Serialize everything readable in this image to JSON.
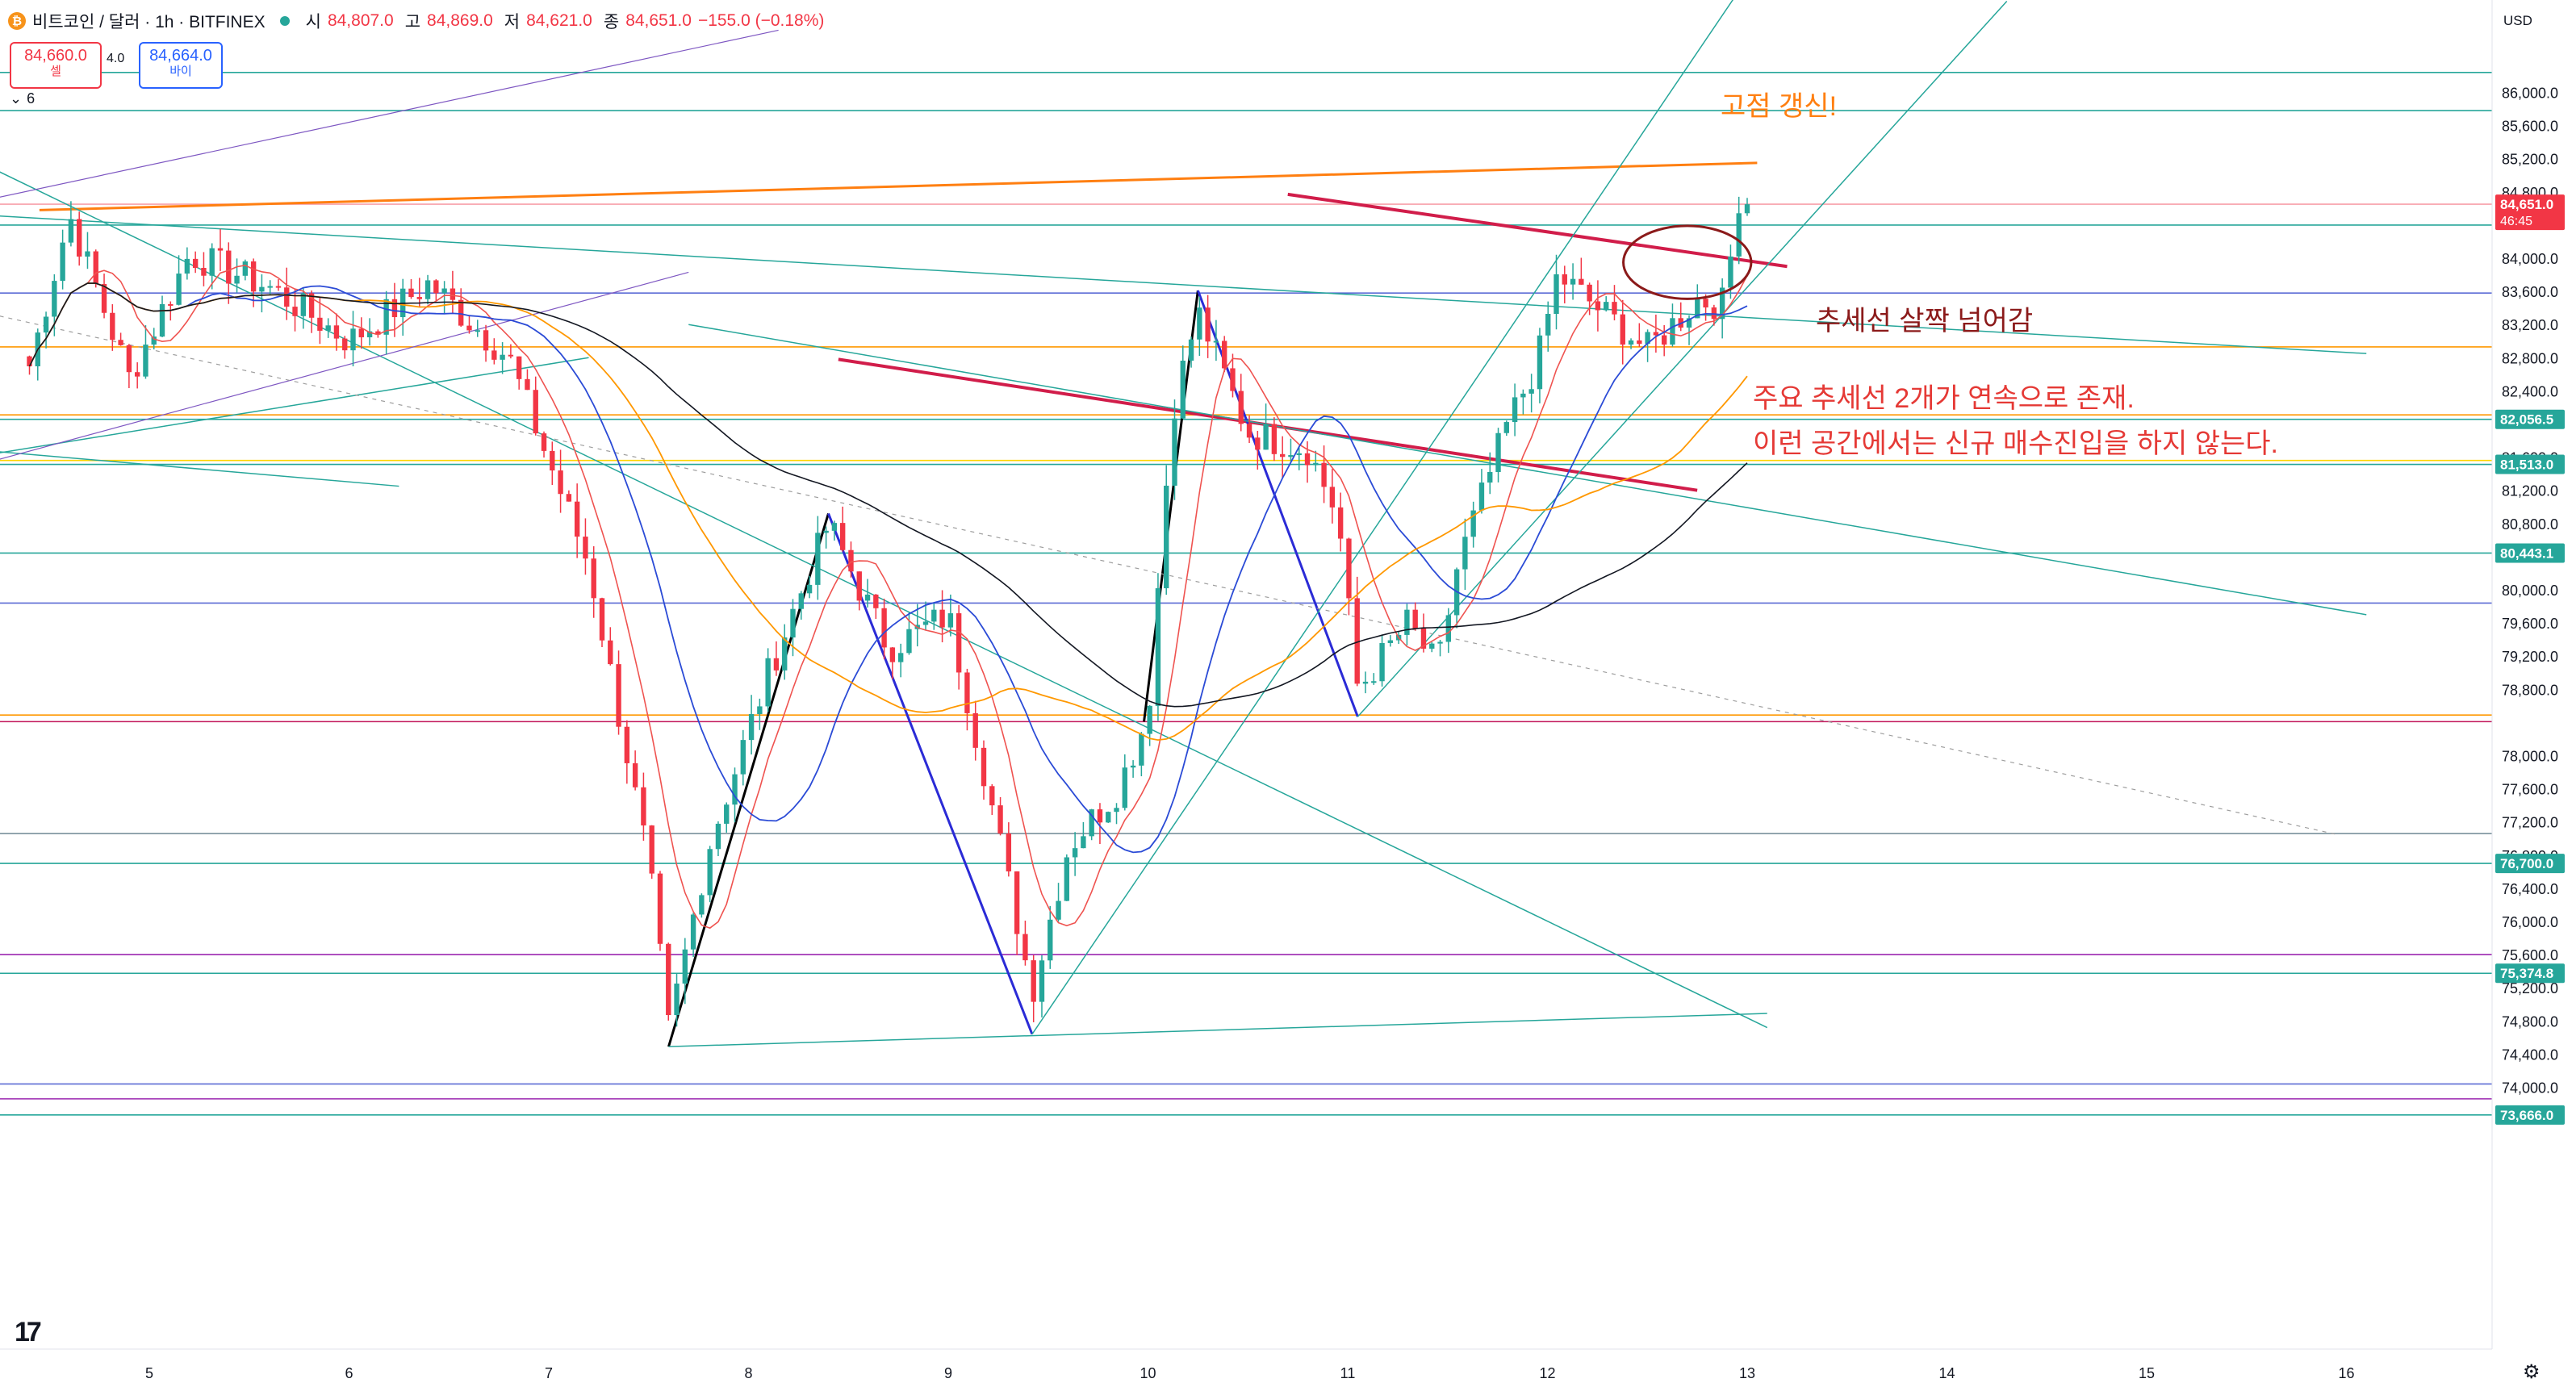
{
  "header": {
    "symbol": "비트코인 / 달러 · 1h · BITFINEX",
    "open_label": "시",
    "open": "84,807.0",
    "high_label": "고",
    "high": "84,869.0",
    "low_label": "저",
    "low": "84,621.0",
    "close_label": "종",
    "close": "84,651.0",
    "change": "−155.0 (−0.18%)",
    "coin_icon": "bitcoin-icon"
  },
  "trade": {
    "sell_price": "84,660.0",
    "sell_label": "셀",
    "spread": "4.0",
    "buy_price": "84,664.0",
    "buy_label": "바이"
  },
  "indicators": {
    "count": "6"
  },
  "currency": "USD",
  "colors": {
    "up": "#26a69a",
    "down": "#f23645",
    "accent": "#ff9800",
    "trend_red": "#d11d4a"
  },
  "annotations": {
    "new_high": "고점 갱신!",
    "slight_break": "추세선 살짝 넘어감",
    "line1": "주요 추세선 2개가 연속으로 존재.",
    "line2": "이런 공간에서는 신규 매수진입을 하지 않는다."
  },
  "chart_data": {
    "type": "candlestick",
    "title": "",
    "x_ticks": [
      "5",
      "6",
      "7",
      "8",
      "9",
      "10",
      "11",
      "12",
      "13",
      "14",
      "15",
      "16"
    ],
    "y_ticks": [
      "86,000.0",
      "85,600.0",
      "85,200.0",
      "84,800.0",
      "84,000.0",
      "83,600.0",
      "83,200.0",
      "82,800.0",
      "82,400.0",
      "81,600.0",
      "81,200.0",
      "80,800.0",
      "80,000.0",
      "79,600.0",
      "79,200.0",
      "78,800.0",
      "78,000.0",
      "77,600.0",
      "77,200.0",
      "76,800.0",
      "76,400.0",
      "76,000.0",
      "75,600.0",
      "75,200.0",
      "74,800.0",
      "74,400.0",
      "74,000.0"
    ],
    "ylim": [
      73550,
      86300
    ],
    "price_tags": [
      {
        "label": "84,651.0",
        "sub": "46:45",
        "value": 84651,
        "color": "#f23645"
      },
      {
        "label": "82,056.5",
        "value": 82056.5,
        "color": "#26a69a"
      },
      {
        "label": "81,513.0",
        "value": 81513,
        "color": "#26a69a"
      },
      {
        "label": "80,443.1",
        "value": 80443.1,
        "color": "#26a69a"
      },
      {
        "label": "76,700.0",
        "value": 76700,
        "color": "#26a69a"
      },
      {
        "label": "75,374.8",
        "value": 75374.8,
        "color": "#26a69a"
      },
      {
        "label": "73,666.0",
        "value": 73666,
        "color": "#26a69a"
      }
    ],
    "horizontal_levels": [
      {
        "value": 86240,
        "color": "#26a69a"
      },
      {
        "value": 85780,
        "color": "#26a69a"
      },
      {
        "value": 84651,
        "color": "#f7a1a9"
      },
      {
        "value": 84400,
        "color": "#26a69a"
      },
      {
        "value": 83580,
        "color": "#5b6bd5"
      },
      {
        "value": 82930,
        "color": "#ff9800"
      },
      {
        "value": 82110,
        "color": "#ff9800"
      },
      {
        "value": 82056.5,
        "color": "#26a69a"
      },
      {
        "value": 81560,
        "color": "#ffd400"
      },
      {
        "value": 81513,
        "color": "#26a69a"
      },
      {
        "value": 80443.1,
        "color": "#26a69a"
      },
      {
        "value": 79840,
        "color": "#5b6bd5"
      },
      {
        "value": 78490,
        "color": "#ff9800"
      },
      {
        "value": 78410,
        "color": "#c2185b"
      },
      {
        "value": 77060,
        "color": "#78909c"
      },
      {
        "value": 76700,
        "color": "#26a69a"
      },
      {
        "value": 75600,
        "color": "#9c27b0"
      },
      {
        "value": 75374.8,
        "color": "#26a69a"
      },
      {
        "value": 74040,
        "color": "#5b6bd5"
      },
      {
        "value": 73860,
        "color": "#9c27b0"
      },
      {
        "value": 73666,
        "color": "#26a69a"
      }
    ],
    "trendlines": [
      {
        "from": [
          4.45,
          84580
        ],
        "to": [
          13.05,
          85150
        ],
        "color": "#ff7f11",
        "width": 3
      },
      {
        "from": [
          10.7,
          84770
        ],
        "to": [
          13.2,
          83900
        ],
        "color": "#d11d4a",
        "width": 4
      },
      {
        "from": [
          8.45,
          82780
        ],
        "to": [
          12.75,
          81200
        ],
        "color": "#d11d4a",
        "width": 4
      },
      {
        "from": [
          7.6,
          74490
        ],
        "to": [
          8.4,
          80920
        ],
        "color": "#000000",
        "width": 3
      },
      {
        "from": [
          9.98,
          78410
        ],
        "to": [
          10.25,
          83610
        ],
        "color": "#000000",
        "width": 3
      },
      {
        "from": [
          8.4,
          80920
        ],
        "to": [
          9.42,
          74640
        ],
        "color": "#2b2bd6",
        "width": 3
      },
      {
        "from": [
          10.25,
          83610
        ],
        "to": [
          11.05,
          78470
        ],
        "color": "#2b2bd6",
        "width": 3
      },
      {
        "from": [
          7.6,
          74490
        ],
        "to": [
          13.1,
          74890
        ],
        "color": "#26a69a",
        "width": 1.5
      },
      {
        "from": [
          9.42,
          74640
        ],
        "to": [
          13.05,
          87550
        ],
        "color": "#26a69a",
        "width": 1.5
      },
      {
        "from": [
          11.05,
          78470
        ],
        "to": [
          14.3,
          87100
        ],
        "color": "#26a69a",
        "width": 1.5
      },
      {
        "from": [
          3.6,
          84600
        ],
        "to": [
          16.1,
          82850
        ],
        "color": "#26a69a",
        "width": 1.5
      },
      {
        "from": [
          7.7,
          83200
        ],
        "to": [
          16.1,
          79700
        ],
        "color": "#26a69a",
        "width": 1.5
      },
      {
        "from": [
          3.6,
          85800
        ],
        "to": [
          13.1,
          74720
        ],
        "color": "#26a69a",
        "width": 1.5
      },
      {
        "from": [
          3.6,
          81400
        ],
        "to": [
          7.2,
          82800
        ],
        "color": "#26a69a",
        "width": 1.5
      },
      {
        "from": [
          3.6,
          81800
        ],
        "to": [
          6.25,
          81250
        ],
        "color": "#26a69a",
        "width": 1.5
      },
      {
        "from": [
          3.6,
          84400
        ],
        "to": [
          8.15,
          86750
        ],
        "color": "#7e57c2",
        "width": 1.2
      },
      {
        "from": [
          3.6,
          81150
        ],
        "to": [
          7.7,
          83830
        ],
        "color": "#7e57c2",
        "width": 1.2
      },
      {
        "from": [
          3.6,
          83650
        ],
        "to": [
          15.95,
          77050
        ],
        "color": "#9e9e9e",
        "width": 1.2,
        "dash": true
      }
    ],
    "ellipse": {
      "center": [
        12.7,
        83950
      ],
      "rx_days": 0.32,
      "ry_price": 440,
      "color": "#8b1a1a"
    },
    "waypoints": [
      [
        4.4,
        82700
      ],
      [
        4.6,
        84520
      ],
      [
        4.9,
        82550
      ],
      [
        5.2,
        84050
      ],
      [
        5.6,
        83650
      ],
      [
        6.0,
        83000
      ],
      [
        6.4,
        83700
      ],
      [
        6.8,
        82800
      ],
      [
        7.2,
        80300
      ],
      [
        7.5,
        76700
      ],
      [
        7.6,
        74700
      ],
      [
        7.8,
        76900
      ],
      [
        8.1,
        79000
      ],
      [
        8.4,
        80800
      ],
      [
        8.7,
        79300
      ],
      [
        9.0,
        79700
      ],
      [
        9.2,
        77600
      ],
      [
        9.42,
        75150
      ],
      [
        9.6,
        76900
      ],
      [
        9.85,
        77600
      ],
      [
        10.0,
        78500
      ],
      [
        10.12,
        82150
      ],
      [
        10.25,
        83350
      ],
      [
        10.5,
        81900
      ],
      [
        10.8,
        81700
      ],
      [
        10.95,
        80900
      ],
      [
        11.05,
        78800
      ],
      [
        11.3,
        79600
      ],
      [
        11.45,
        79050
      ],
      [
        11.55,
        80300
      ],
      [
        11.8,
        82000
      ],
      [
        11.95,
        82750
      ],
      [
        12.05,
        83800
      ],
      [
        12.2,
        83500
      ],
      [
        12.5,
        82900
      ],
      [
        12.75,
        83500
      ],
      [
        12.88,
        83450
      ],
      [
        12.95,
        84520
      ],
      [
        13.0,
        84651
      ]
    ]
  }
}
